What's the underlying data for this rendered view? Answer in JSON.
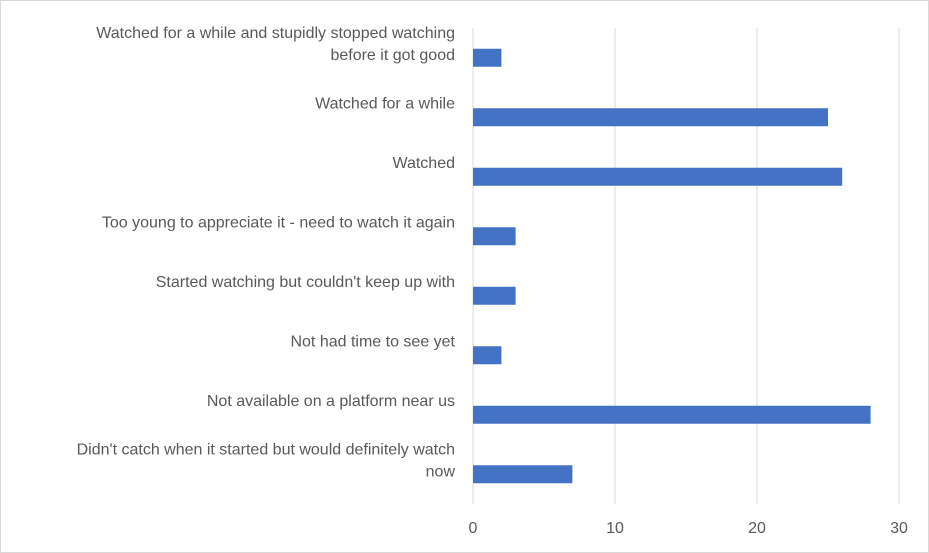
{
  "chart_data": {
    "type": "bar",
    "orientation": "horizontal",
    "categories": [
      "Watched for a while and stupidly stopped watching before it got good",
      "Watched for a while",
      "Watched",
      "Too young to appreciate it - need to watch it again",
      "Started watching but couldn't keep up with",
      "Not had time to see yet",
      "Not available on a platform near us",
      "Didn't catch when it started but would definitely watch now"
    ],
    "category_lines": [
      [
        "Watched for a while and stupidly stopped watching",
        "before it got good"
      ],
      [
        "Watched for a while"
      ],
      [
        "Watched"
      ],
      [
        "Too young to appreciate it - need to watch it again"
      ],
      [
        "Started watching but couldn't keep up with"
      ],
      [
        "Not had time to see yet"
      ],
      [
        "Not available on a platform near us"
      ],
      [
        "Didn't catch when it started but would definitely watch",
        "now"
      ]
    ],
    "values": [
      2,
      25,
      26,
      3,
      3,
      2,
      28,
      7
    ],
    "xlim": [
      0,
      30
    ],
    "xticks": [
      "0",
      "10",
      "20",
      "30"
    ],
    "title": "",
    "xlabel": "",
    "ylabel": "",
    "grid": "vertical",
    "legend": "none",
    "bar_color": "#4472c4",
    "grid_color": "#d9d9d9",
    "text_color": "#595959"
  }
}
